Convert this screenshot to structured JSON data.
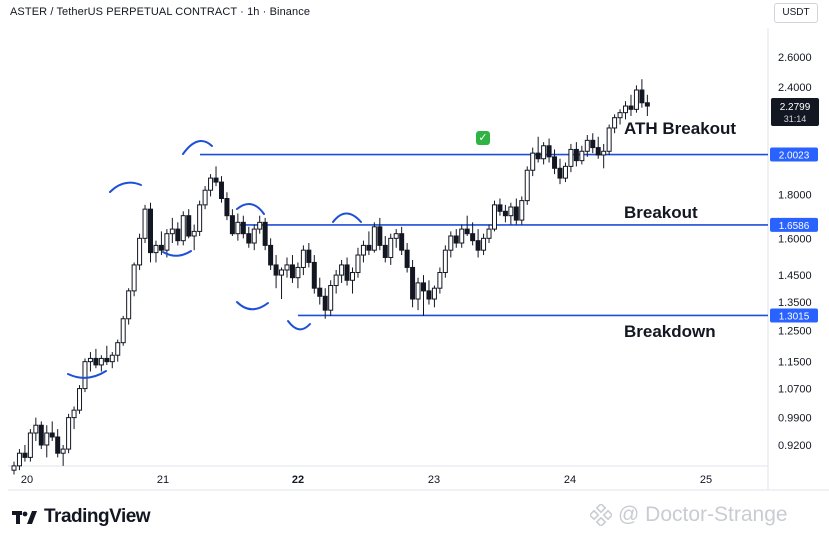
{
  "header": {
    "symbol_line": "ASTER / TetherUS PERPETUAL CONTRACT · 1h · Binance",
    "currency": "USDT"
  },
  "brand": {
    "name": "TradingView"
  },
  "watermark": {
    "text": "@ Doctor-Strange"
  },
  "annotations": {
    "ath_breakout": "ATH Breakout",
    "breakout": "Breakout",
    "breakdown": "Breakdown",
    "checkmark": "✓"
  },
  "price_tag": {
    "value": "2.2799",
    "countdown": "31:14"
  },
  "colors": {
    "line": "#1e4fd8",
    "candle": "#131722",
    "tag": "#2962ff"
  },
  "chart_data": {
    "type": "candlestick",
    "title": "ASTER / TetherUS PERPETUAL CONTRACT · 1h · Binance",
    "x_ticks": [
      "20",
      "21",
      "22",
      "23",
      "24",
      "25"
    ],
    "y_ticks": [
      "2.6000",
      "2.4000",
      "1.8000",
      "1.6000",
      "1.4500",
      "1.3500",
      "1.2500",
      "1.1500",
      "1.0700",
      "0.9900",
      "0.9200"
    ],
    "ylabel": "USDT",
    "levels": [
      {
        "value": 2.0023,
        "label": "2.0023",
        "annotation": "ATH Breakout"
      },
      {
        "value": 1.6586,
        "label": "1.6586",
        "annotation": "Breakout"
      },
      {
        "value": 1.3015,
        "label": "1.3015",
        "annotation": "Breakdown"
      }
    ],
    "last_price": 2.2799,
    "candles": [
      [
        0.86,
        0.88,
        0.85,
        0.87
      ],
      [
        0.87,
        0.91,
        0.86,
        0.9
      ],
      [
        0.9,
        0.92,
        0.88,
        0.89
      ],
      [
        0.89,
        0.96,
        0.88,
        0.95
      ],
      [
        0.95,
        0.99,
        0.93,
        0.97
      ],
      [
        0.97,
        0.98,
        0.91,
        0.92
      ],
      [
        0.92,
        0.97,
        0.89,
        0.95
      ],
      [
        0.95,
        0.98,
        0.93,
        0.94
      ],
      [
        0.94,
        0.96,
        0.89,
        0.9
      ],
      [
        0.9,
        0.92,
        0.87,
        0.91
      ],
      [
        0.91,
        1.0,
        0.9,
        0.99
      ],
      [
        0.99,
        1.02,
        0.96,
        1.01
      ],
      [
        1.01,
        1.08,
        1.0,
        1.07
      ],
      [
        1.07,
        1.16,
        1.06,
        1.15
      ],
      [
        1.15,
        1.18,
        1.12,
        1.16
      ],
      [
        1.16,
        1.19,
        1.13,
        1.14
      ],
      [
        1.14,
        1.17,
        1.12,
        1.16
      ],
      [
        1.16,
        1.2,
        1.14,
        1.15
      ],
      [
        1.15,
        1.18,
        1.13,
        1.17
      ],
      [
        1.17,
        1.22,
        1.15,
        1.21
      ],
      [
        1.21,
        1.3,
        1.2,
        1.29
      ],
      [
        1.29,
        1.4,
        1.27,
        1.39
      ],
      [
        1.39,
        1.5,
        1.37,
        1.49
      ],
      [
        1.49,
        1.62,
        1.47,
        1.6
      ],
      [
        1.6,
        1.75,
        1.58,
        1.73
      ],
      [
        1.73,
        1.76,
        1.5,
        1.54
      ],
      [
        1.54,
        1.59,
        1.5,
        1.57
      ],
      [
        1.57,
        1.63,
        1.53,
        1.55
      ],
      [
        1.55,
        1.64,
        1.52,
        1.62
      ],
      [
        1.62,
        1.69,
        1.58,
        1.64
      ],
      [
        1.64,
        1.67,
        1.57,
        1.59
      ],
      [
        1.59,
        1.72,
        1.57,
        1.7
      ],
      [
        1.7,
        1.73,
        1.6,
        1.61
      ],
      [
        1.61,
        1.66,
        1.55,
        1.63
      ],
      [
        1.63,
        1.77,
        1.61,
        1.75
      ],
      [
        1.75,
        1.84,
        1.73,
        1.82
      ],
      [
        1.82,
        1.9,
        1.79,
        1.88
      ],
      [
        1.88,
        1.94,
        1.84,
        1.86
      ],
      [
        1.86,
        1.89,
        1.76,
        1.78
      ],
      [
        1.78,
        1.81,
        1.68,
        1.7
      ],
      [
        1.7,
        1.73,
        1.61,
        1.62
      ],
      [
        1.62,
        1.71,
        1.59,
        1.67
      ],
      [
        1.67,
        1.7,
        1.6,
        1.62
      ],
      [
        1.62,
        1.65,
        1.56,
        1.58
      ],
      [
        1.58,
        1.66,
        1.55,
        1.64
      ],
      [
        1.64,
        1.7,
        1.62,
        1.67
      ],
      [
        1.67,
        1.69,
        1.55,
        1.57
      ],
      [
        1.57,
        1.6,
        1.47,
        1.49
      ],
      [
        1.49,
        1.53,
        1.4,
        1.45
      ],
      [
        1.45,
        1.48,
        1.36,
        1.47
      ],
      [
        1.47,
        1.52,
        1.44,
        1.49
      ],
      [
        1.49,
        1.53,
        1.42,
        1.44
      ],
      [
        1.44,
        1.5,
        1.4,
        1.48
      ],
      [
        1.48,
        1.57,
        1.45,
        1.55
      ],
      [
        1.55,
        1.58,
        1.48,
        1.5
      ],
      [
        1.5,
        1.53,
        1.38,
        1.4
      ],
      [
        1.4,
        1.44,
        1.34,
        1.37
      ],
      [
        1.37,
        1.4,
        1.29,
        1.32
      ],
      [
        1.32,
        1.43,
        1.3,
        1.41
      ],
      [
        1.41,
        1.47,
        1.38,
        1.45
      ],
      [
        1.45,
        1.51,
        1.42,
        1.49
      ],
      [
        1.49,
        1.52,
        1.41,
        1.43
      ],
      [
        1.43,
        1.48,
        1.38,
        1.46
      ],
      [
        1.46,
        1.56,
        1.44,
        1.53
      ],
      [
        1.53,
        1.59,
        1.5,
        1.57
      ],
      [
        1.57,
        1.63,
        1.53,
        1.55
      ],
      [
        1.55,
        1.67,
        1.54,
        1.65
      ],
      [
        1.65,
        1.69,
        1.55,
        1.57
      ],
      [
        1.57,
        1.61,
        1.5,
        1.52
      ],
      [
        1.52,
        1.62,
        1.49,
        1.6
      ],
      [
        1.6,
        1.64,
        1.56,
        1.62
      ],
      [
        1.62,
        1.65,
        1.53,
        1.55
      ],
      [
        1.55,
        1.58,
        1.46,
        1.48
      ],
      [
        1.48,
        1.51,
        1.33,
        1.36
      ],
      [
        1.36,
        1.44,
        1.32,
        1.42
      ],
      [
        1.42,
        1.45,
        1.3,
        1.39
      ],
      [
        1.39,
        1.43,
        1.34,
        1.36
      ],
      [
        1.36,
        1.41,
        1.33,
        1.4
      ],
      [
        1.4,
        1.48,
        1.38,
        1.46
      ],
      [
        1.46,
        1.57,
        1.44,
        1.55
      ],
      [
        1.55,
        1.63,
        1.52,
        1.61
      ],
      [
        1.61,
        1.64,
        1.56,
        1.58
      ],
      [
        1.58,
        1.66,
        1.56,
        1.64
      ],
      [
        1.64,
        1.7,
        1.61,
        1.62
      ],
      [
        1.62,
        1.67,
        1.57,
        1.59
      ],
      [
        1.59,
        1.64,
        1.52,
        1.55
      ],
      [
        1.55,
        1.62,
        1.53,
        1.6
      ],
      [
        1.6,
        1.66,
        1.58,
        1.64
      ],
      [
        1.64,
        1.77,
        1.63,
        1.75
      ],
      [
        1.75,
        1.78,
        1.7,
        1.72
      ],
      [
        1.72,
        1.75,
        1.67,
        1.7
      ],
      [
        1.7,
        1.76,
        1.66,
        1.74
      ],
      [
        1.74,
        1.78,
        1.66,
        1.68
      ],
      [
        1.68,
        1.79,
        1.66,
        1.77
      ],
      [
        1.77,
        1.94,
        1.75,
        1.92
      ],
      [
        1.92,
        2.04,
        1.89,
        2.01
      ],
      [
        2.01,
        2.1,
        1.96,
        1.98
      ],
      [
        1.98,
        2.07,
        1.95,
        2.05
      ],
      [
        2.05,
        2.09,
        1.96,
        1.99
      ],
      [
        1.99,
        2.03,
        1.9,
        1.93
      ],
      [
        1.93,
        1.98,
        1.85,
        1.88
      ],
      [
        1.88,
        1.96,
        1.86,
        1.94
      ],
      [
        1.94,
        2.06,
        1.91,
        2.03
      ],
      [
        2.03,
        2.07,
        1.94,
        1.97
      ],
      [
        1.97,
        2.05,
        1.95,
        2.02
      ],
      [
        2.02,
        2.11,
        1.99,
        2.08
      ],
      [
        2.08,
        2.12,
        2.01,
        2.04
      ],
      [
        2.04,
        2.1,
        1.98,
        2.0
      ],
      [
        2.0,
        2.06,
        1.93,
        2.02
      ],
      [
        2.02,
        2.17,
        2.0,
        2.15
      ],
      [
        2.15,
        2.23,
        2.12,
        2.21
      ],
      [
        2.21,
        2.26,
        2.17,
        2.24
      ],
      [
        2.24,
        2.31,
        2.2,
        2.28
      ],
      [
        2.28,
        2.35,
        2.22,
        2.26
      ],
      [
        2.26,
        2.41,
        2.24,
        2.38
      ],
      [
        2.38,
        2.45,
        2.27,
        2.3
      ],
      [
        2.3,
        2.35,
        2.22,
        2.28
      ]
    ]
  }
}
